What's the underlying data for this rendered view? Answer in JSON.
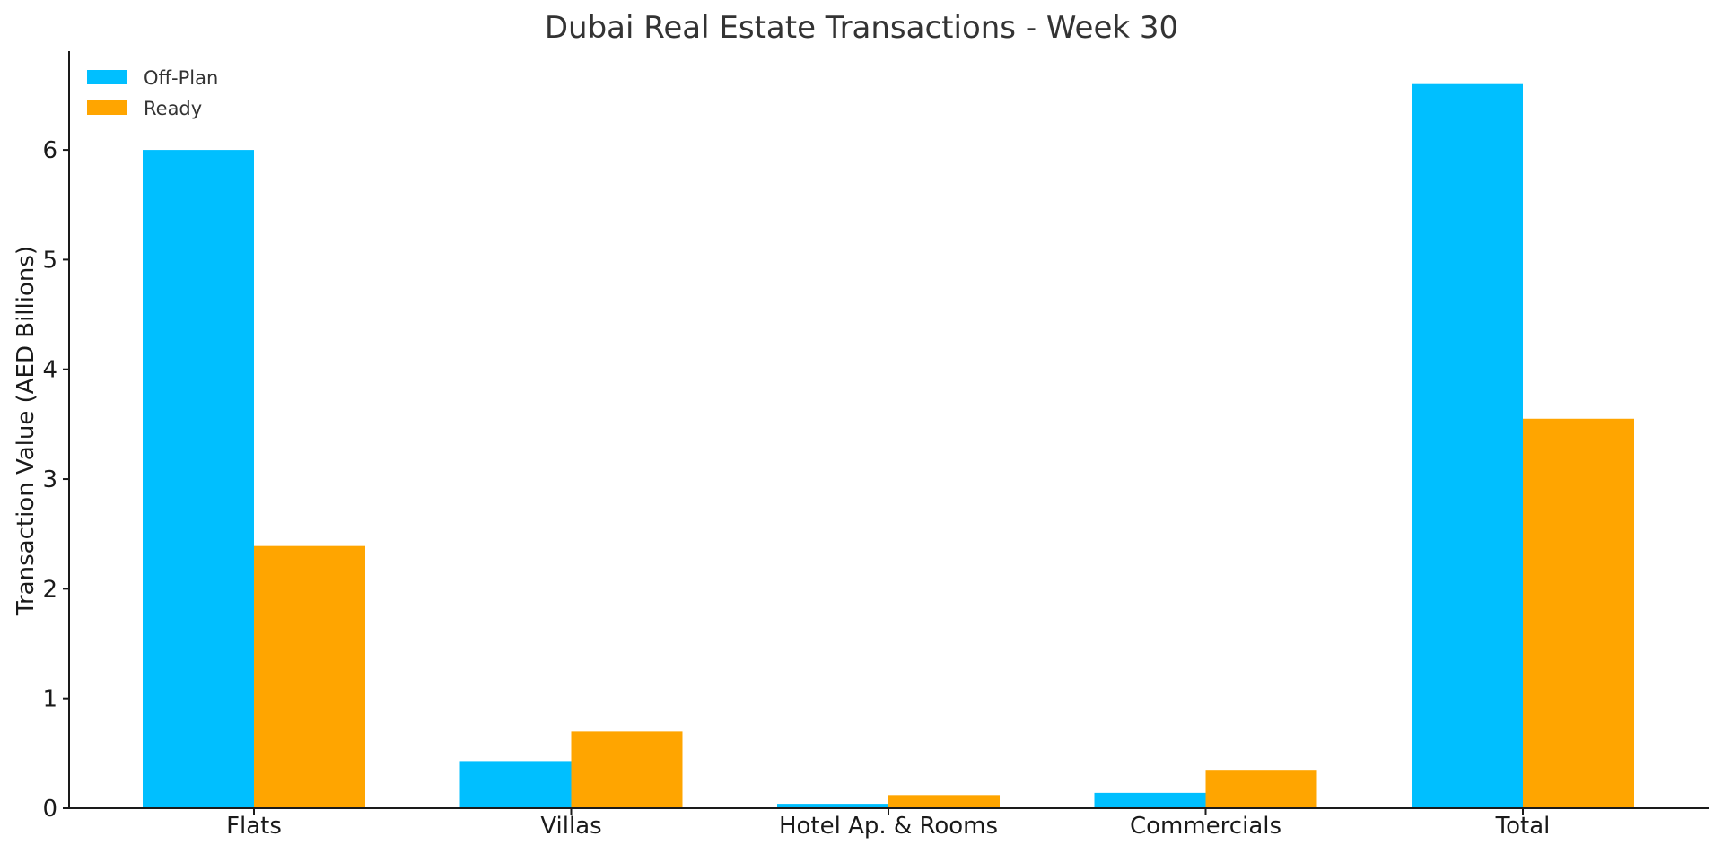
{
  "chart_data": {
    "type": "bar",
    "title": "Dubai Real Estate Transactions - Week 30",
    "xlabel": "",
    "ylabel": "Transaction Value (AED Billions)",
    "categories": [
      "Flats",
      "Villas",
      "Hotel Ap. & Rooms",
      "Commercials",
      "Total"
    ],
    "series": [
      {
        "name": "Off-Plan",
        "color": "#00BFFF",
        "values": [
          6.0,
          0.43,
          0.04,
          0.14,
          6.6
        ]
      },
      {
        "name": "Ready",
        "color": "#FFA500",
        "values": [
          2.39,
          0.7,
          0.12,
          0.35,
          3.55
        ]
      }
    ],
    "ylim": [
      0,
      6.9
    ],
    "yticks": [
      0,
      1,
      2,
      3,
      4,
      5,
      6
    ],
    "grid": false,
    "legend_position": "top-left"
  }
}
